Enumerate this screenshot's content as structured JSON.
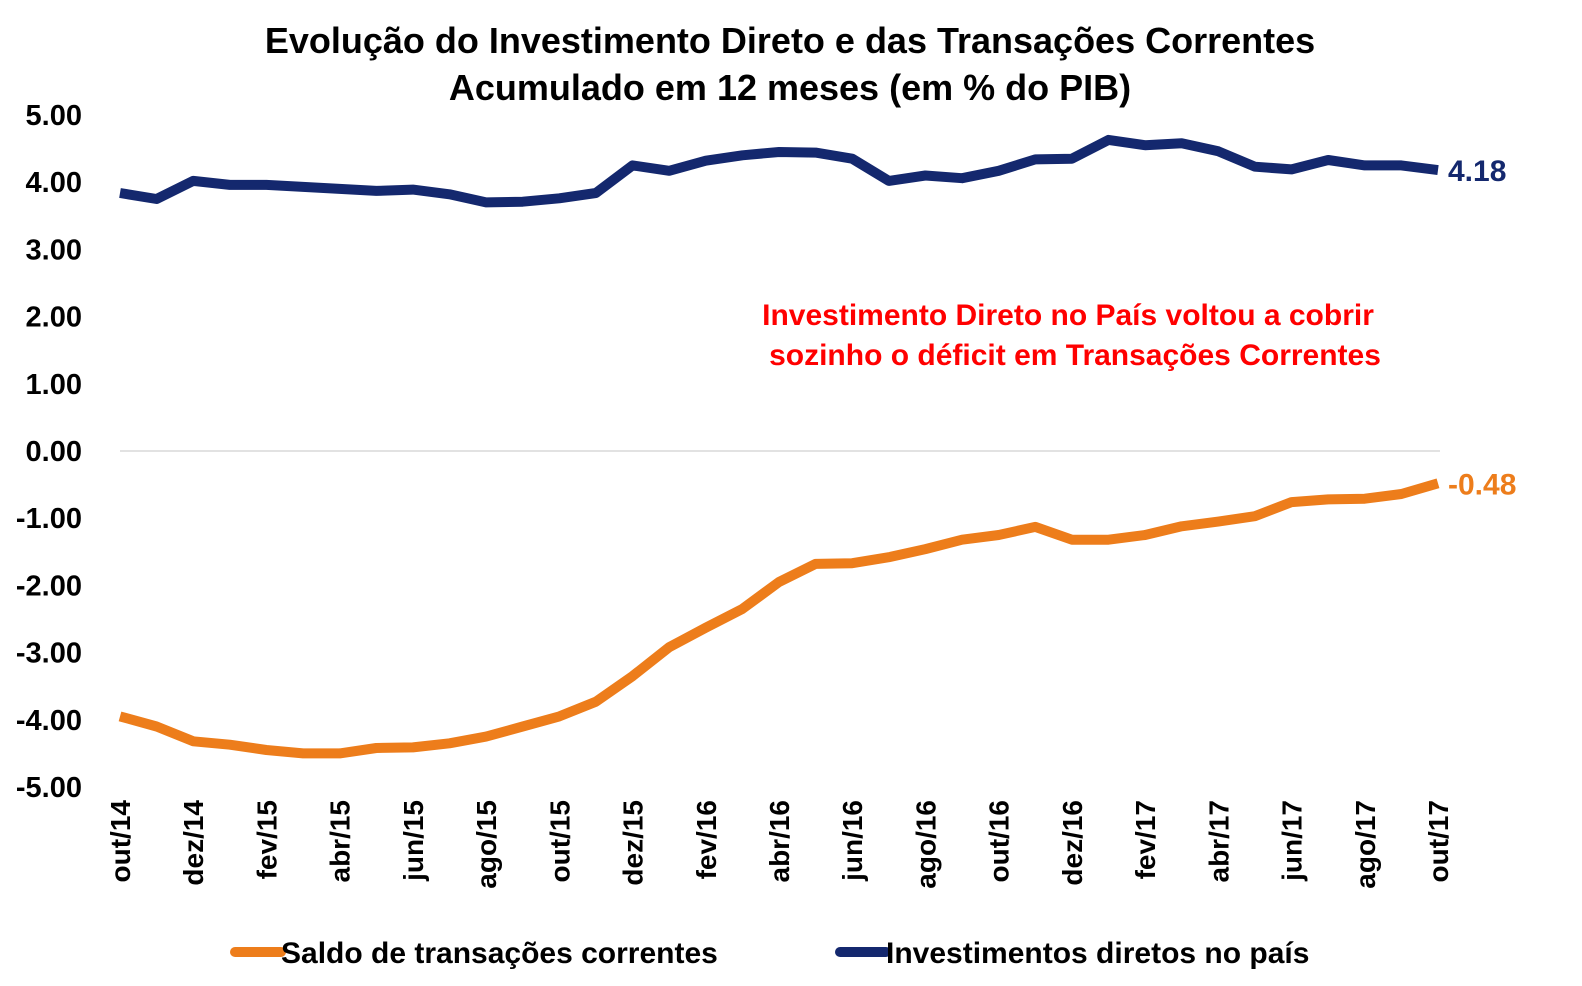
{
  "chart_data": {
    "type": "line",
    "title_line1": "Evolução do Investimento Direto e das Transações Correntes",
    "title_line2": "Acumulado em 12 meses (em % do PIB)",
    "ylim": [
      -5,
      5
    ],
    "y_ticks": [
      "5.00",
      "4.00",
      "3.00",
      "2.00",
      "1.00",
      "0.00",
      "-1.00",
      "-2.00",
      "-3.00",
      "-4.00",
      "-5.00"
    ],
    "grid": "zero line only",
    "legend_placement": "bottom",
    "x": [
      "out/14",
      "nov/14",
      "dez/14",
      "jan/15",
      "fev/15",
      "mar/15",
      "abr/15",
      "mai/15",
      "jun/15",
      "jul/15",
      "ago/15",
      "set/15",
      "out/15",
      "nov/15",
      "dez/15",
      "jan/16",
      "fev/16",
      "mar/16",
      "abr/16",
      "mai/16",
      "jun/16",
      "jul/16",
      "ago/16",
      "set/16",
      "out/16",
      "nov/16",
      "dez/16",
      "jan/17",
      "fev/17",
      "mar/17",
      "abr/17",
      "mai/17",
      "jun/17",
      "jul/17",
      "ago/17",
      "set/17",
      "out/17"
    ],
    "x_tick_labels": [
      "out/14",
      "dez/14",
      "fev/15",
      "abr/15",
      "jun/15",
      "ago/15",
      "out/15",
      "dez/15",
      "fev/16",
      "abr/16",
      "jun/16",
      "ago/16",
      "out/16",
      "dez/16",
      "fev/17",
      "abr/17",
      "jun/17",
      "ago/17",
      "out/17"
    ],
    "series": [
      {
        "name": "Saldo de transações correntes",
        "color": "#ed7d1b",
        "values": [
          -3.95,
          -4.1,
          -4.32,
          -4.37,
          -4.45,
          -4.5,
          -4.5,
          -4.42,
          -4.41,
          -4.35,
          -4.25,
          -4.1,
          -3.95,
          -3.73,
          -3.35,
          -2.92,
          -2.63,
          -2.35,
          -1.95,
          -1.68,
          -1.67,
          -1.58,
          -1.46,
          -1.32,
          -1.25,
          -1.13,
          -1.32,
          -1.32,
          -1.25,
          -1.12,
          -1.05,
          -0.97,
          -0.76,
          -0.72,
          -0.71,
          -0.64,
          -0.48
        ],
        "end_label": "-0.48"
      },
      {
        "name": "Investimentos diretos no país",
        "color": "#14286e",
        "values": [
          3.84,
          3.75,
          4.02,
          3.96,
          3.96,
          3.93,
          3.9,
          3.87,
          3.89,
          3.82,
          3.7,
          3.71,
          3.76,
          3.84,
          4.25,
          4.17,
          4.32,
          4.4,
          4.45,
          4.44,
          4.35,
          4.02,
          4.1,
          4.06,
          4.17,
          4.34,
          4.35,
          4.63,
          4.55,
          4.58,
          4.46,
          4.23,
          4.19,
          4.33,
          4.25,
          4.25,
          4.18
        ],
        "end_label": "4.18"
      }
    ],
    "annotation_line1": "Investimento Direto no País voltou a cobrir",
    "annotation_line2": "sozinho o déficit em Transações Correntes",
    "annotation_color": "#ff0000"
  }
}
